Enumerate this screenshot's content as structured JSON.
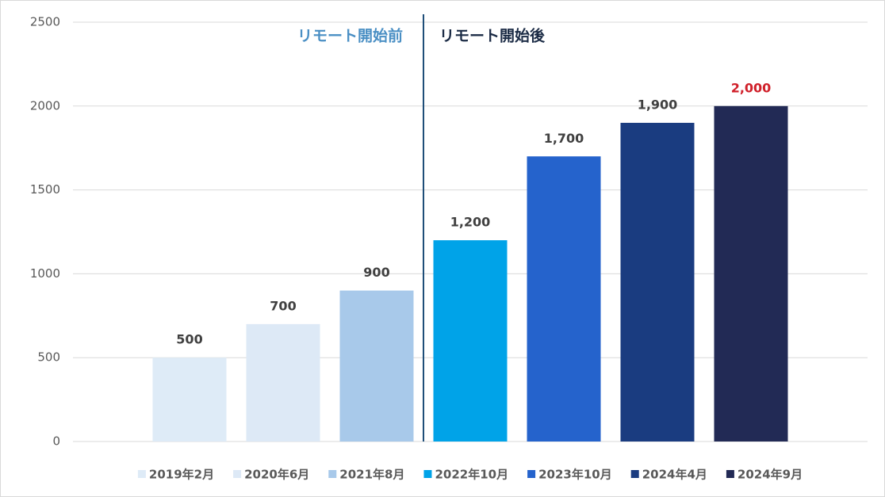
{
  "chart_data": {
    "type": "bar",
    "ylim": [
      0,
      2500
    ],
    "yticks": [
      0,
      500,
      1000,
      1500,
      2000,
      2500
    ],
    "grid": true,
    "annotations": [
      {
        "text": "リモート開始前",
        "color": "#4a8fc4"
      },
      {
        "text": "リモート開始後",
        "color": "#1b2b45"
      }
    ],
    "series": [
      {
        "name": "2019年2月",
        "color": "#deebf7",
        "values": [
          500
        ],
        "value_labels": [
          "500"
        ],
        "label_color": "#404040"
      },
      {
        "name": "2020年6月",
        "color": "#dde9f6",
        "values": [
          700
        ],
        "value_labels": [
          "700"
        ],
        "label_color": "#404040"
      },
      {
        "name": "2021年8月",
        "color": "#a8c9ea",
        "values": [
          900
        ],
        "value_labels": [
          "900"
        ],
        "label_color": "#404040"
      },
      {
        "name": "2022年10月",
        "color": "#00a3e8",
        "values": [
          1200
        ],
        "value_labels": [
          "1,200"
        ],
        "label_color": "#404040"
      },
      {
        "name": "2023年10月",
        "color": "#2563cc",
        "values": [
          1700
        ],
        "value_labels": [
          "1,700"
        ],
        "label_color": "#404040"
      },
      {
        "name": "2024年4月",
        "color": "#1a3c80",
        "values": [
          1900
        ],
        "value_labels": [
          "1,900"
        ],
        "label_color": "#404040"
      },
      {
        "name": "2024年9月",
        "color": "#222a55",
        "values": [
          2000
        ],
        "value_labels": [
          "2,000"
        ],
        "label_color": "#d0202a"
      }
    ]
  }
}
